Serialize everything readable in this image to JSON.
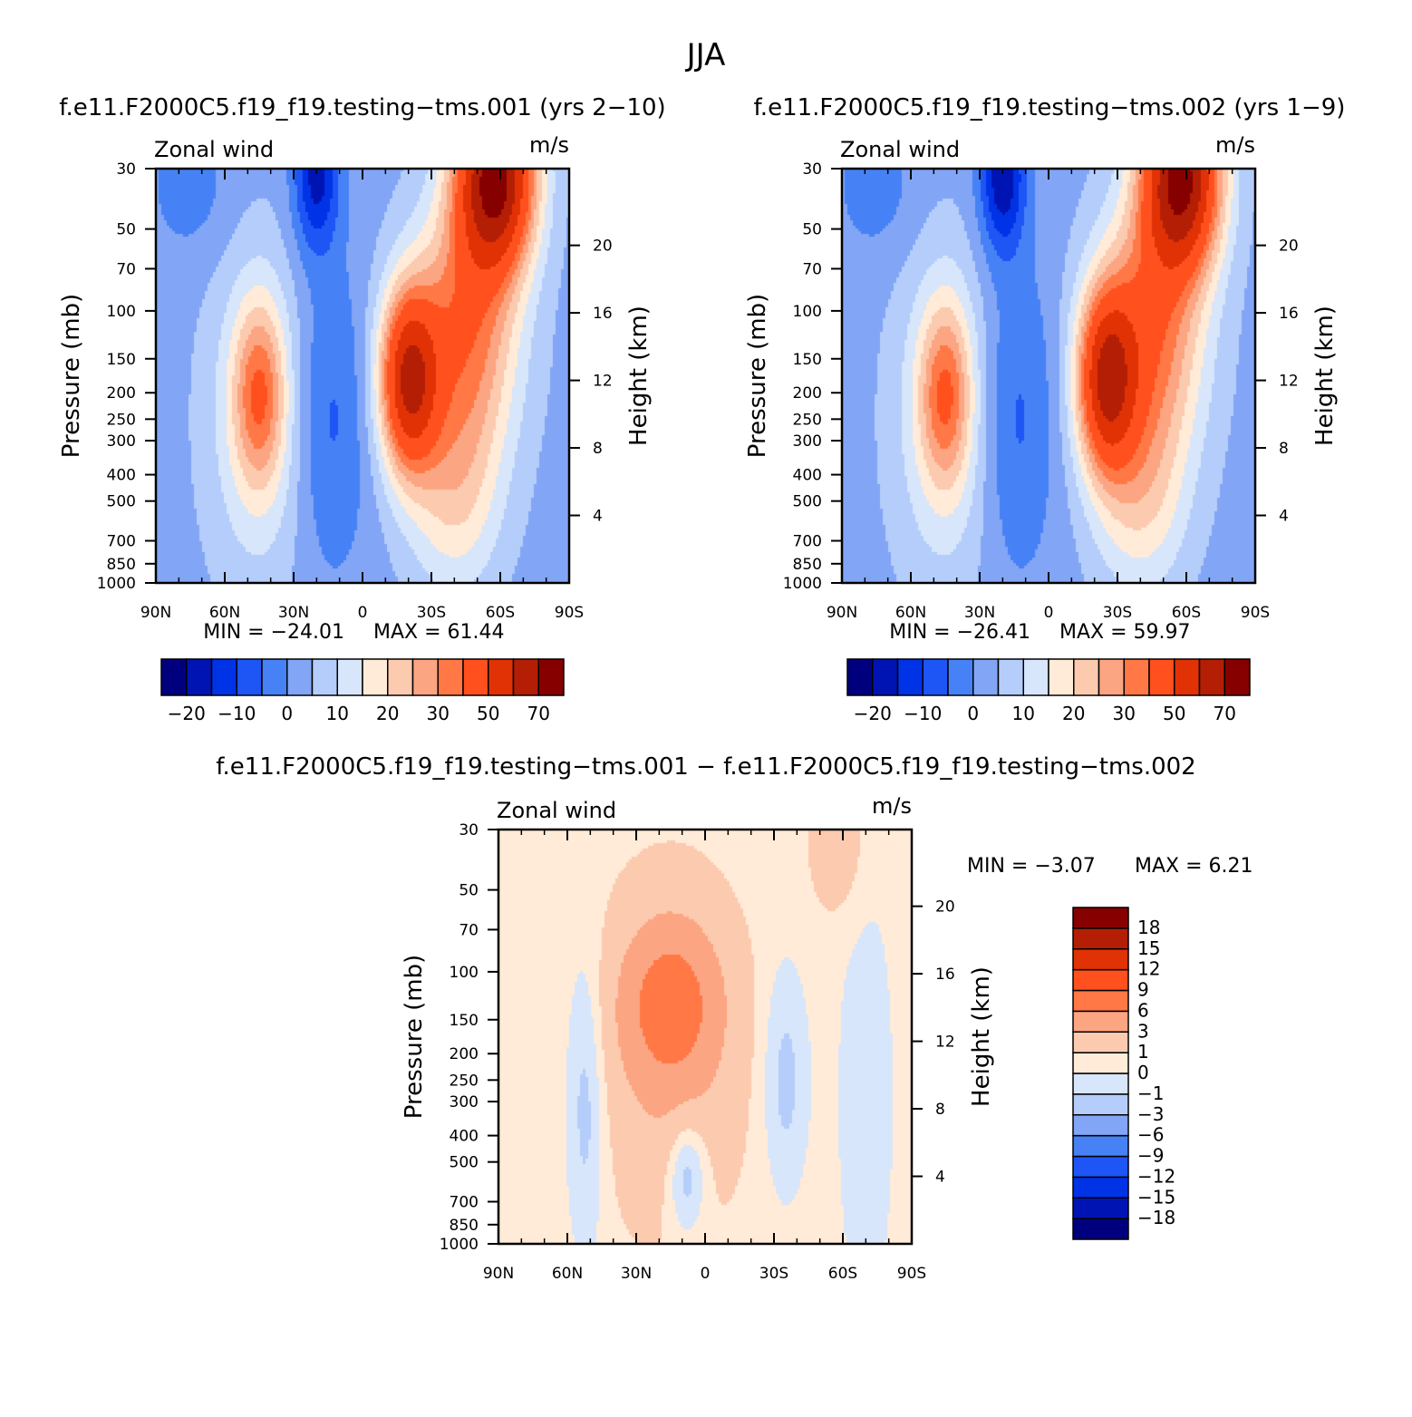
{
  "title": "JJA",
  "panels": [
    {
      "id": "case1",
      "case_title": "f.e11.F2000C5.f19_f19.testing−tms.001 (yrs 2−10)",
      "left_string": "Zonal wind",
      "right_string": "m/s",
      "ylabel": "Pressure (mb)",
      "ylabel2": "Height (km)",
      "min_label": "MIN = −24.01",
      "max_label": "MAX =  61.44"
    },
    {
      "id": "case2",
      "case_title": "f.e11.F2000C5.f19_f19.testing−tms.002 (yrs 1−9)",
      "left_string": "Zonal wind",
      "right_string": "m/s",
      "ylabel": "Pressure (mb)",
      "ylabel2": "Height (km)",
      "min_label": "MIN = −26.41",
      "max_label": "MAX =  59.97"
    },
    {
      "id": "diff",
      "case_title": "f.e11.F2000C5.f19_f19.testing−tms.001 − f.e11.F2000C5.f19_f19.testing−tms.002",
      "left_string": "Zonal wind",
      "right_string": "m/s",
      "ylabel": "Pressure (mb)",
      "ylabel2": "Height (km)",
      "min_label": "MIN =   −3.07",
      "max_label": "MAX =    6.21"
    }
  ],
  "chart_data": [
    {
      "type": "heatmap",
      "name": "case1",
      "x_ticks": [
        "90N",
        "60N",
        "30N",
        "0",
        "30S",
        "60S",
        "90S"
      ],
      "x_values": [
        90,
        60,
        30,
        0,
        -30,
        -60,
        -90
      ],
      "y_ticks": [
        30,
        50,
        70,
        100,
        150,
        200,
        250,
        300,
        400,
        500,
        700,
        850,
        1000
      ],
      "y_scale": "log",
      "ylim": [
        1000,
        30
      ],
      "y2_ticks": [
        4,
        8,
        12,
        16,
        20
      ],
      "min": -24.01,
      "max": 61.44,
      "colorbar_labels": [
        "−20",
        "−10",
        "0",
        "10",
        "20",
        "30",
        "50",
        "70"
      ],
      "colors": [
        "#00007f",
        "#0014b4",
        "#0032e6",
        "#1e55f5",
        "#4682f5",
        "#82a5f5",
        "#b4cdfa",
        "#d7e6fa",
        "#ffebd7",
        "#fccaaf",
        "#fca582",
        "#ff7846",
        "#ff501e",
        "#e13205",
        "#b41e05",
        "#870000"
      ],
      "features": [
        {
          "kind": "jet",
          "lat": -20,
          "p": 180,
          "value": 47
        },
        {
          "kind": "jet",
          "lat": -58,
          "p": 35,
          "value": 61.44
        },
        {
          "kind": "easterly",
          "lat": 18,
          "p": 35,
          "value": -24.01
        },
        {
          "kind": "westerly",
          "lat": 45,
          "p": 190,
          "value": 21
        }
      ]
    },
    {
      "type": "heatmap",
      "name": "case2",
      "x_ticks": [
        "90N",
        "60N",
        "30N",
        "0",
        "30S",
        "60S",
        "90S"
      ],
      "x_values": [
        90,
        60,
        30,
        0,
        -30,
        -60,
        -90
      ],
      "y_ticks": [
        30,
        50,
        70,
        100,
        150,
        200,
        250,
        300,
        400,
        500,
        700,
        850,
        1000
      ],
      "y_scale": "log",
      "ylim": [
        1000,
        30
      ],
      "y2_ticks": [
        4,
        8,
        12,
        16,
        20
      ],
      "min": -26.41,
      "max": 59.97,
      "colorbar_labels": [
        "−20",
        "−10",
        "0",
        "10",
        "20",
        "30",
        "50",
        "70"
      ],
      "colors": [
        "#00007f",
        "#0014b4",
        "#0032e6",
        "#1e55f5",
        "#4682f5",
        "#82a5f5",
        "#b4cdfa",
        "#d7e6fa",
        "#ffebd7",
        "#fccaaf",
        "#fca582",
        "#ff7846",
        "#ff501e",
        "#e13205",
        "#b41e05",
        "#870000"
      ],
      "features": [
        {
          "kind": "jet",
          "lat": -25,
          "p": 180,
          "value": 44
        },
        {
          "kind": "jet",
          "lat": -58,
          "p": 35,
          "value": 59.97
        },
        {
          "kind": "easterly",
          "lat": 20,
          "p": 35,
          "value": -26.41
        },
        {
          "kind": "westerly",
          "lat": 45,
          "p": 190,
          "value": 21
        }
      ]
    },
    {
      "type": "heatmap",
      "name": "diff",
      "x_ticks": [
        "90N",
        "60N",
        "30N",
        "0",
        "30S",
        "60S",
        "90S"
      ],
      "x_values": [
        90,
        60,
        30,
        0,
        -30,
        -60,
        -90
      ],
      "y_ticks": [
        30,
        50,
        70,
        100,
        150,
        200,
        250,
        300,
        400,
        500,
        700,
        850,
        1000
      ],
      "y_scale": "log",
      "ylim": [
        1000,
        30
      ],
      "y2_ticks": [
        4,
        8,
        12,
        16,
        20
      ],
      "min": -3.07,
      "max": 6.21,
      "colorbar_labels": [
        "18",
        "15",
        "12",
        "9",
        "6",
        "3",
        "1",
        "0",
        "−1",
        "−3",
        "−6",
        "−9",
        "−12",
        "−15",
        "−18"
      ],
      "colors": [
        "#00007f",
        "#0014b4",
        "#0032e6",
        "#1e55f5",
        "#4682f5",
        "#82a5f5",
        "#b4cdfa",
        "#d7e6fa",
        "#ffebd7",
        "#fccaaf",
        "#fca582",
        "#ff7846",
        "#ff501e",
        "#e13205",
        "#b41e05",
        "#870000"
      ],
      "features": [
        {
          "kind": "positive",
          "lat": 15,
          "p": 130,
          "value": 6.21
        },
        {
          "kind": "negative",
          "lat": 10,
          "p": 500,
          "value": -3.07
        }
      ]
    }
  ]
}
